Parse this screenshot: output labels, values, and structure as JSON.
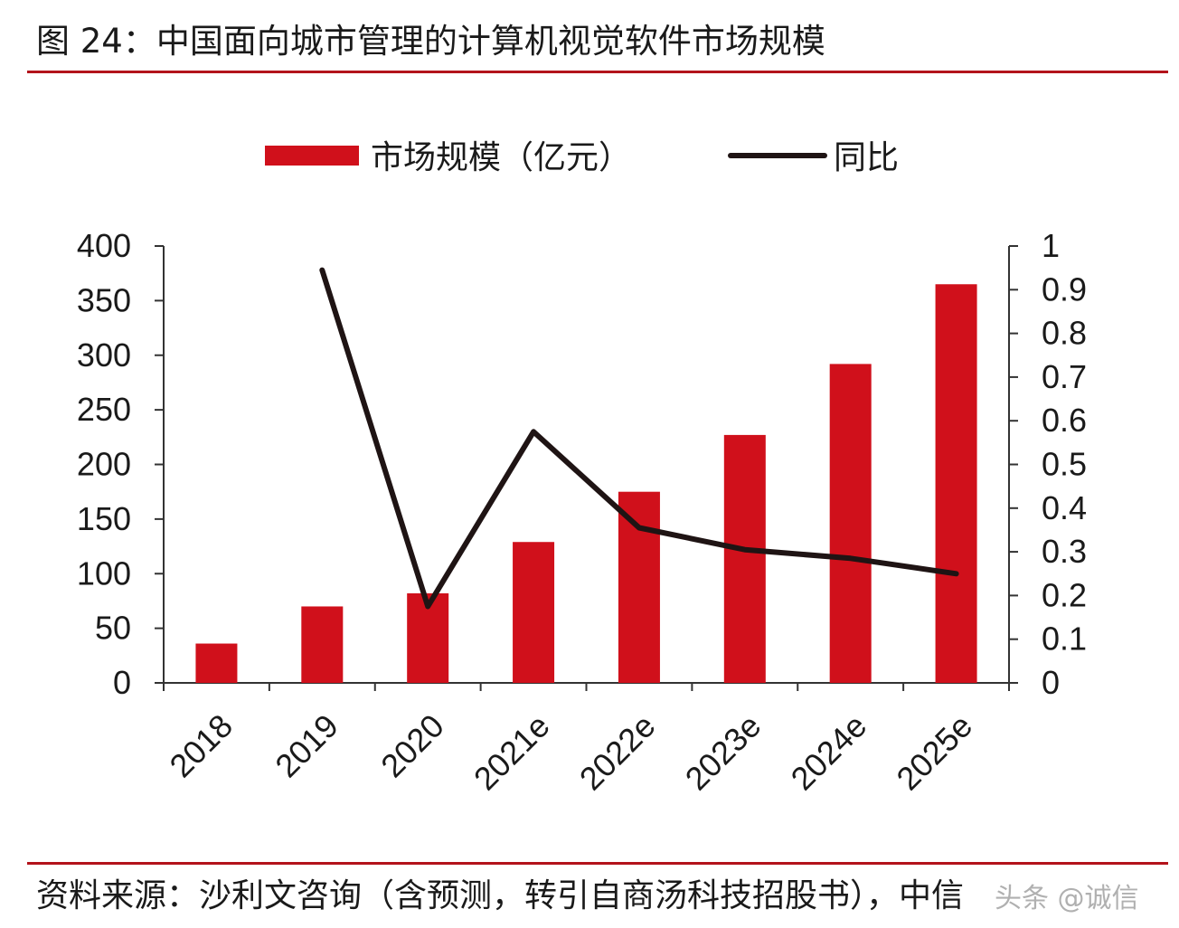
{
  "figure": {
    "title": "图 24：中国面向城市管理的计算机视觉软件市场规模",
    "source": "资料来源：沙利文咨询（含预测，转引自商汤科技招股书），中信",
    "watermark": "头条 @诚信"
  },
  "colors": {
    "bar": "#d0101b",
    "line": "#1f1414",
    "rule": "#b3131b",
    "axis": "#333333"
  },
  "chart_data": {
    "type": "bar",
    "categories": [
      "2018",
      "2019",
      "2020",
      "2021e",
      "2022e",
      "2023e",
      "2024e",
      "2025e"
    ],
    "series": [
      {
        "name": "市场规模（亿元）",
        "type": "bar",
        "axis": "left",
        "values": [
          36,
          70,
          82,
          129,
          175,
          227,
          292,
          365
        ]
      },
      {
        "name": "同比",
        "type": "line",
        "axis": "right",
        "values": [
          null,
          0.945,
          0.175,
          0.575,
          0.355,
          0.305,
          0.285,
          0.25
        ]
      }
    ],
    "y_left": {
      "range": [
        0,
        400
      ],
      "ticks": [
        "0",
        "50",
        "100",
        "150",
        "200",
        "250",
        "300",
        "350",
        "400"
      ]
    },
    "y_right": {
      "range": [
        0,
        1
      ],
      "ticks": [
        "0",
        "0.1",
        "0.2",
        "0.3",
        "0.4",
        "0.5",
        "0.6",
        "0.7",
        "0.8",
        "0.9",
        "1"
      ]
    },
    "legend_position": "top-center",
    "grid": false
  }
}
